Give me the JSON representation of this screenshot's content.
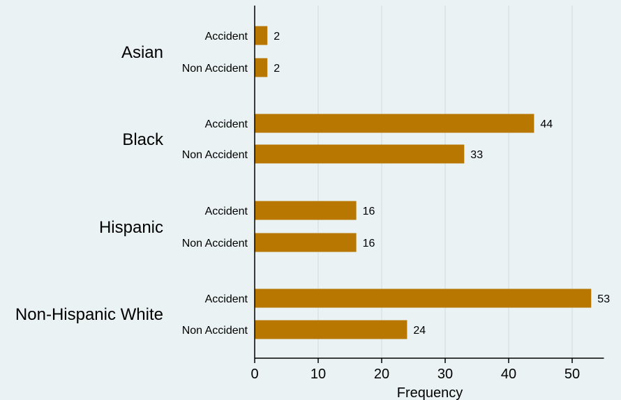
{
  "chart_data": {
    "type": "bar",
    "orientation": "horizontal",
    "xlabel": "Frequency",
    "xlim": [
      0,
      55
    ],
    "xticks": [
      0,
      10,
      20,
      30,
      40,
      50
    ],
    "grid": true,
    "groups": [
      {
        "name": "Asian",
        "bars": [
          {
            "label": "Accident",
            "value": 2
          },
          {
            "label": "Non Accident",
            "value": 2
          }
        ]
      },
      {
        "name": "Black",
        "bars": [
          {
            "label": "Accident",
            "value": 44
          },
          {
            "label": "Non Accident",
            "value": 33
          }
        ]
      },
      {
        "name": "Hispanic",
        "bars": [
          {
            "label": "Accident",
            "value": 16
          },
          {
            "label": "Non Accident",
            "value": 16
          }
        ]
      },
      {
        "name": "Non-Hispanic White",
        "bars": [
          {
            "label": "Accident",
            "value": 53
          },
          {
            "label": "Non Accident",
            "value": 24
          }
        ]
      }
    ]
  },
  "colors": {
    "bar": "#b87700",
    "background": "#eaf2f3",
    "grid": "#dde7ea",
    "axis": "#000000"
  }
}
